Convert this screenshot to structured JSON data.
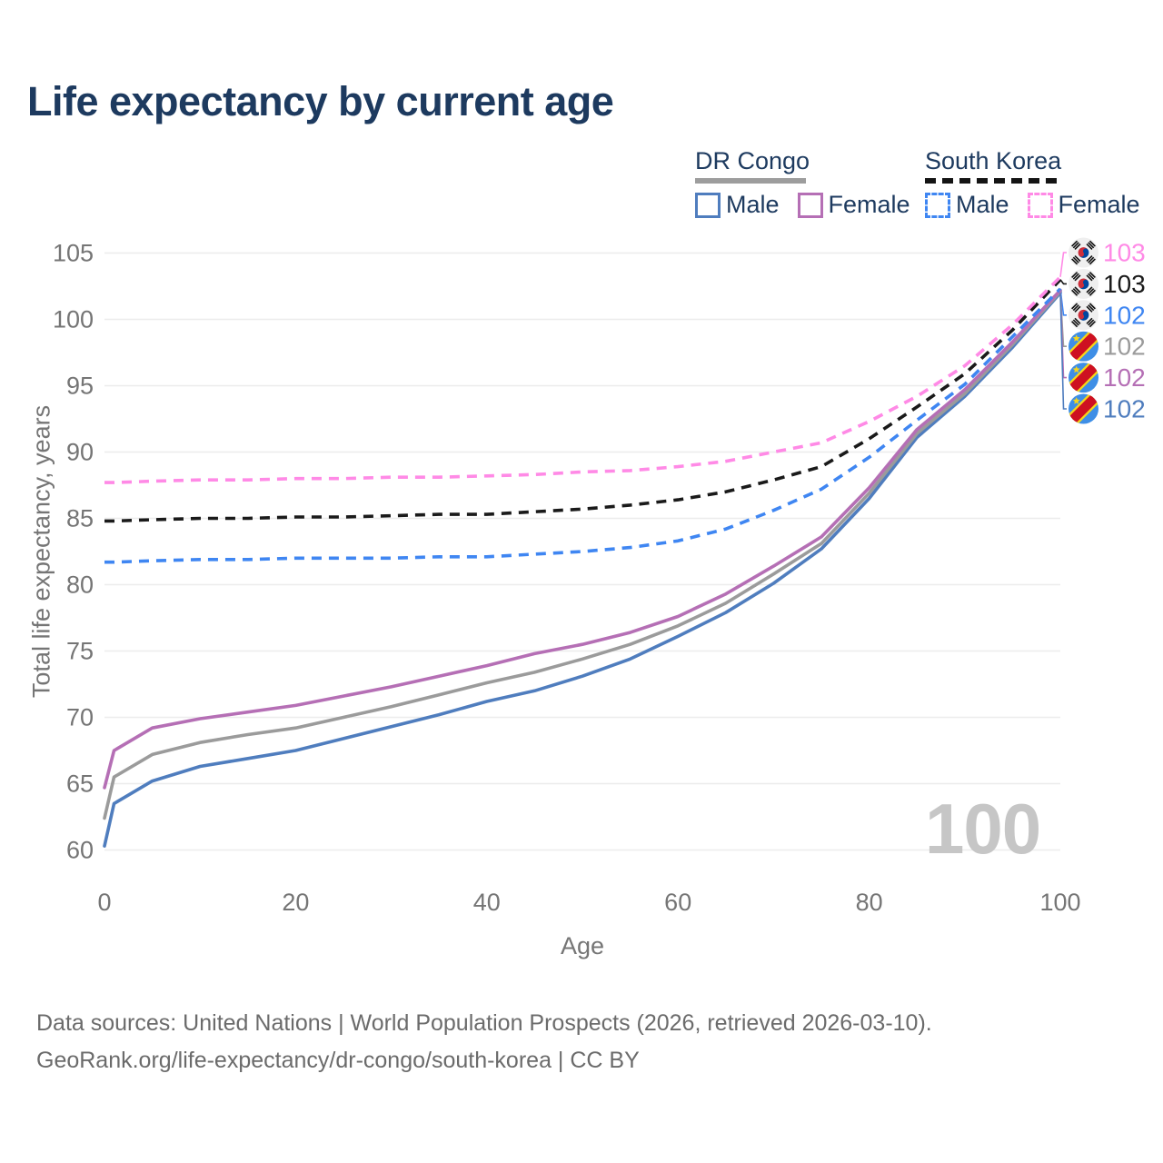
{
  "title": "Life expectancy by current age",
  "legend": {
    "groups": [
      {
        "name": "DR Congo",
        "line_style": "solid",
        "underline_color": "#9d9d9d",
        "items": [
          {
            "label": "Male",
            "color": "#4f7dbe"
          },
          {
            "label": "Female",
            "color": "#b56fb5"
          }
        ]
      },
      {
        "name": "South Korea",
        "line_style": "dashed",
        "underline_color": "#141414",
        "items": [
          {
            "label": "Male",
            "color": "#3f86f2"
          },
          {
            "label": "Female",
            "color": "#ff8ae6"
          }
        ]
      }
    ]
  },
  "chart_data": {
    "type": "line",
    "title": "Life expectancy by current age",
    "xlabel": "Age",
    "ylabel": "Total life expectancy, years",
    "xlim": [
      0,
      100
    ],
    "ylim": [
      60,
      105
    ],
    "x_ticks": [
      0,
      20,
      40,
      60,
      80,
      100
    ],
    "y_ticks": [
      60,
      65,
      70,
      75,
      80,
      85,
      90,
      95,
      100,
      105
    ],
    "grid": "horizontal",
    "legend_position": "top-right",
    "watermark": "100",
    "ages": [
      0,
      1,
      5,
      10,
      15,
      20,
      25,
      30,
      35,
      40,
      45,
      50,
      55,
      60,
      65,
      70,
      75,
      80,
      85,
      90,
      95,
      100
    ],
    "series": [
      {
        "name": "DR Congo Male",
        "country": "DR Congo",
        "sex": "Male",
        "color": "#4f7dbe",
        "dash": false,
        "values": [
          60.3,
          63.5,
          65.2,
          66.3,
          66.9,
          67.5,
          68.4,
          69.3,
          70.2,
          71.2,
          72.0,
          73.1,
          74.4,
          76.1,
          77.9,
          80.1,
          82.7,
          86.5,
          91.1,
          94.2,
          97.9,
          102.0
        ]
      },
      {
        "name": "DR Congo Total",
        "country": "DR Congo",
        "sex": "Both",
        "color": "#9b9b9b",
        "dash": false,
        "values": [
          62.4,
          65.5,
          67.2,
          68.1,
          68.7,
          69.2,
          70.0,
          70.8,
          71.7,
          72.6,
          73.4,
          74.4,
          75.5,
          76.9,
          78.6,
          80.8,
          83.1,
          86.9,
          91.4,
          94.4,
          98.1,
          102.1
        ]
      },
      {
        "name": "DR Congo Female",
        "country": "DR Congo",
        "sex": "Female",
        "color": "#b56fb5",
        "dash": false,
        "values": [
          64.7,
          67.5,
          69.2,
          69.9,
          70.4,
          70.9,
          71.6,
          72.3,
          73.1,
          73.9,
          74.8,
          75.5,
          76.4,
          77.6,
          79.3,
          81.4,
          83.6,
          87.3,
          91.7,
          94.7,
          98.3,
          102.2
        ]
      },
      {
        "name": "South Korea Male",
        "country": "South Korea",
        "sex": "Male",
        "color": "#3f86f2",
        "dash": true,
        "values": [
          81.7,
          81.7,
          81.8,
          81.9,
          81.9,
          82.0,
          82.0,
          82.0,
          82.1,
          82.1,
          82.3,
          82.5,
          82.8,
          83.3,
          84.2,
          85.6,
          87.2,
          89.6,
          92.4,
          95.1,
          98.7,
          102.3
        ]
      },
      {
        "name": "South Korea Total",
        "country": "South Korea",
        "sex": "Both",
        "color": "#1a1a1a",
        "dash": true,
        "values": [
          84.8,
          84.8,
          84.9,
          85.0,
          85.0,
          85.1,
          85.1,
          85.2,
          85.3,
          85.3,
          85.5,
          85.7,
          86.0,
          86.4,
          87.0,
          87.9,
          88.9,
          91.0,
          93.4,
          95.9,
          99.2,
          103.0
        ]
      },
      {
        "name": "South Korea Female",
        "country": "South Korea",
        "sex": "Female",
        "color": "#ff8ae6",
        "dash": true,
        "values": [
          87.7,
          87.7,
          87.8,
          87.9,
          87.9,
          88.0,
          88.0,
          88.1,
          88.1,
          88.2,
          88.3,
          88.5,
          88.6,
          88.9,
          89.3,
          90.0,
          90.7,
          92.3,
          94.2,
          96.5,
          99.6,
          103.2
        ]
      }
    ],
    "end_labels": [
      {
        "value": "103",
        "series": "South Korea Female",
        "color": "#ff8ae6",
        "flag": "south-korea"
      },
      {
        "value": "103",
        "series": "South Korea Total",
        "color": "#1a1a1a",
        "flag": "south-korea"
      },
      {
        "value": "102",
        "series": "South Korea Male",
        "color": "#3f86f2",
        "flag": "south-korea"
      },
      {
        "value": "102",
        "series": "DR Congo Total",
        "color": "#9b9b9b",
        "flag": "dr-congo"
      },
      {
        "value": "102",
        "series": "DR Congo Female",
        "color": "#b56fb5",
        "flag": "dr-congo"
      },
      {
        "value": "102",
        "series": "DR Congo Male",
        "color": "#4f7dbe",
        "flag": "dr-congo"
      }
    ]
  },
  "footer": {
    "line1": "Data sources: United Nations | World Population Prospects (2026, retrieved 2026-03-10).",
    "line2": "GeoRank.org/life-expectancy/dr-congo/south-korea | CC BY"
  }
}
